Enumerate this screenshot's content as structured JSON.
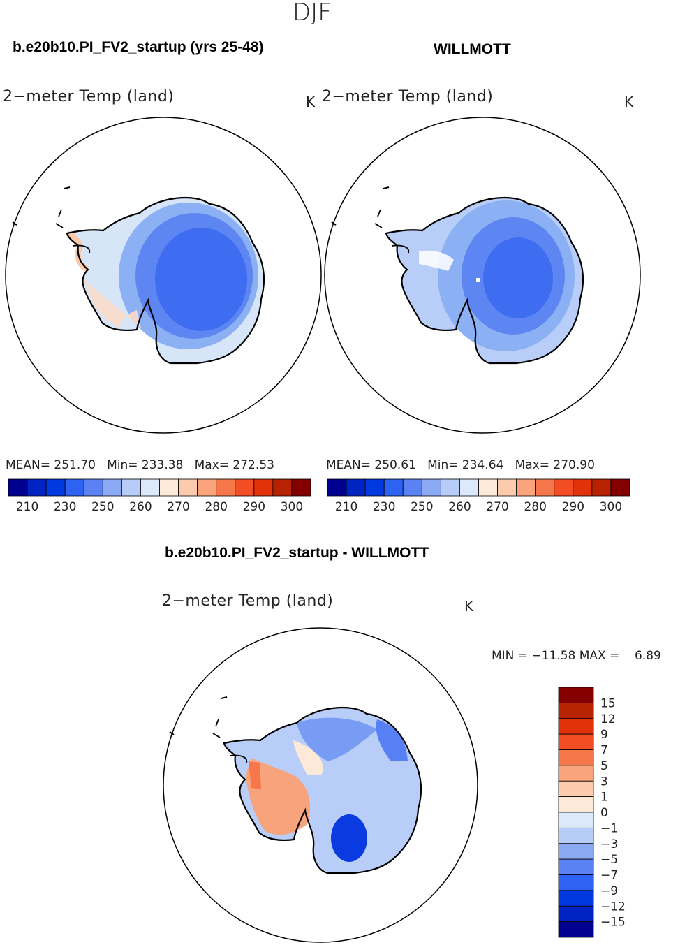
{
  "figure": {
    "season": "DJF",
    "unit": "K",
    "variable": "2−meter Temp (land)"
  },
  "panels": [
    {
      "id": "model",
      "title": "b.e20b10.PI_FV2_startup (yrs 25-48)",
      "variable": "2−meter Temp (land)",
      "unit": "K",
      "stats": "MEAN= 251.70   Min= 233.38   Max= 272.53",
      "mean": 251.7,
      "min": 233.38,
      "max": 272.53
    },
    {
      "id": "obs",
      "title": "WILLMOTT",
      "variable": "2−meter Temp (land)",
      "unit": "K",
      "stats": "MEAN= 250.61   Min= 234.64   Max= 270.90",
      "mean": 250.61,
      "min": 234.64,
      "max": 270.9
    },
    {
      "id": "diff",
      "title": "b.e20b10.PI_FV2_startup - WILLMOTT",
      "variable": "2−meter Temp (land)",
      "unit": "K",
      "stats": "MIN = −11.58 MAX =    6.89",
      "min": -11.58,
      "max": 6.89
    }
  ],
  "colorbars": {
    "abs": {
      "colors": [
        "#000091",
        "#0023c4",
        "#0039e0",
        "#2d62f3",
        "#5a82f2",
        "#8caaf3",
        "#b7cdf8",
        "#dce9fa",
        "#fde9d8",
        "#fccaad",
        "#f9a47c",
        "#f6784a",
        "#f24d25",
        "#e23209",
        "#b72200",
        "#840000"
      ],
      "labels": [
        "210",
        "230",
        "250",
        "260",
        "270",
        "280",
        "290",
        "300"
      ]
    },
    "diff": {
      "colors": [
        "#840000",
        "#b72200",
        "#e23209",
        "#f24d25",
        "#f6784a",
        "#f9a47c",
        "#fccaad",
        "#fde9d8",
        "#dce9fa",
        "#b7cdf8",
        "#8caaf3",
        "#5a82f2",
        "#2d62f3",
        "#0039e0",
        "#0023c4",
        "#000091"
      ],
      "labels": [
        "15",
        "12",
        "9",
        "7",
        "5",
        "3",
        "1",
        "0",
        "−1",
        "−3",
        "−5",
        "−7",
        "−9",
        "−12",
        "−15"
      ]
    }
  }
}
